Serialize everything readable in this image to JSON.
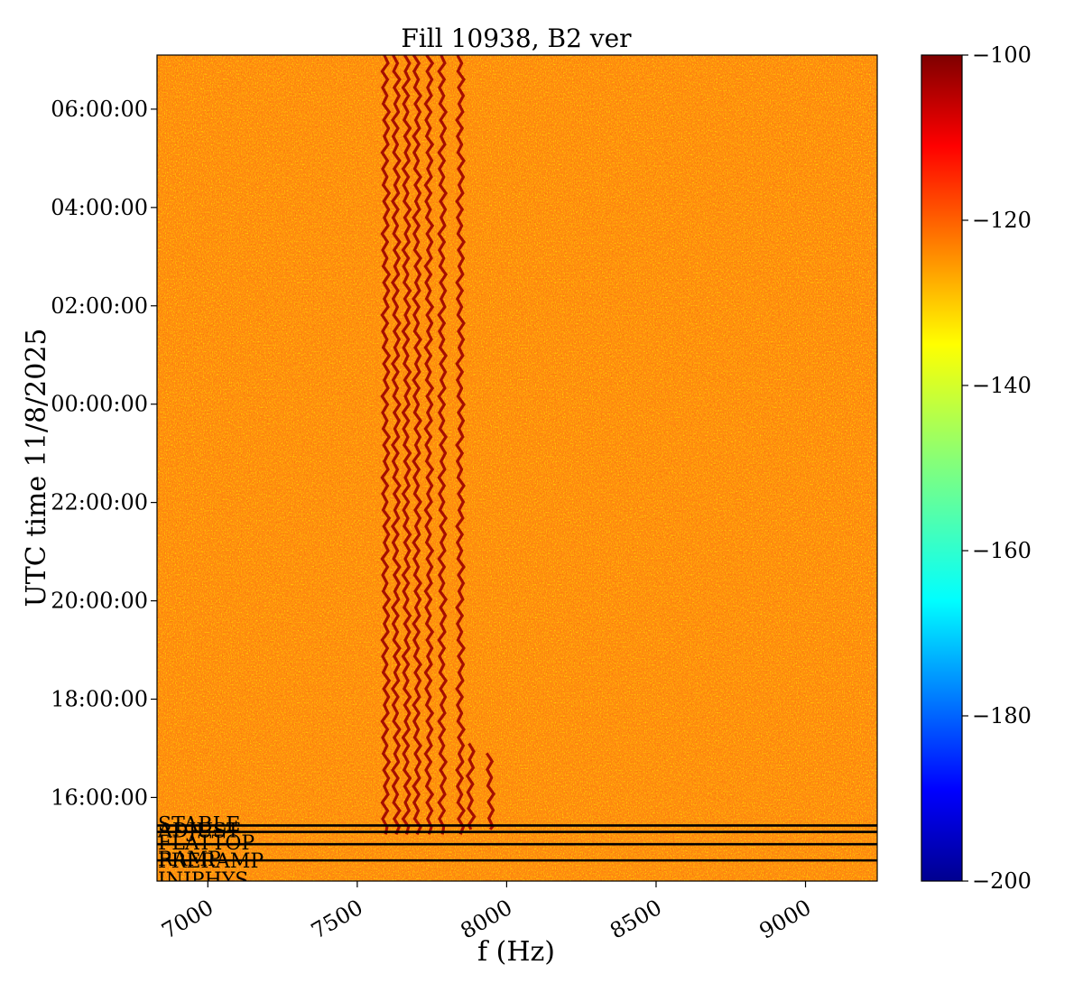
{
  "chart_data": {
    "type": "heatmap",
    "title": "Fill 10938, B2 ver",
    "xlabel": "f (Hz)",
    "ylabel": "UTC time 11/8/2025",
    "xlim": [
      6830,
      9240
    ],
    "x_ticks": [
      7000,
      7500,
      8000,
      8500,
      9000
    ],
    "x_tick_labels": [
      "7000",
      "7500",
      "8000",
      "8500",
      "9000"
    ],
    "ylim_hours": [
      14.3,
      31.1
    ],
    "y_ticks_hours": [
      16,
      18,
      20,
      22,
      24,
      26,
      28,
      30
    ],
    "y_tick_labels": [
      "16:00:00",
      "18:00:00",
      "20:00:00",
      "22:00:00",
      "00:00:00",
      "02:00:00",
      "04:00:00",
      "06:00:00"
    ],
    "colorbar": {
      "colormap": "jet",
      "range": [
        -200,
        -100
      ],
      "ticks": [
        -100,
        -120,
        -140,
        -160,
        -180,
        -200
      ],
      "tick_labels": [
        "−100",
        "−120",
        "−140",
        "−160",
        "−180",
        "−200"
      ]
    },
    "background_level": -120,
    "lines": [
      {
        "freq": 7595,
        "start_hour": 15.25,
        "end_hour": 31.1
      },
      {
        "freq": 7630,
        "start_hour": 15.25,
        "end_hour": 31.1
      },
      {
        "freq": 7665,
        "start_hour": 15.25,
        "end_hour": 31.1
      },
      {
        "freq": 7700,
        "start_hour": 15.25,
        "end_hour": 31.1
      },
      {
        "freq": 7740,
        "start_hour": 15.25,
        "end_hour": 31.1
      },
      {
        "freq": 7785,
        "start_hour": 15.25,
        "end_hour": 31.1
      },
      {
        "freq": 7845,
        "start_hour": 15.25,
        "end_hour": 31.1
      },
      {
        "freq": 7880,
        "start_hour": 15.35,
        "end_hour": 17.1
      },
      {
        "freq": 7945,
        "start_hour": 15.35,
        "end_hour": 16.9
      }
    ],
    "mode_annotations": [
      {
        "label": "STABLE",
        "hour": 15.43
      },
      {
        "label": "ADJUST",
        "hour": 15.3
      },
      {
        "label": "FLATTOP",
        "hour": 15.05
      },
      {
        "label": "RAMP",
        "hour": 14.72
      },
      {
        "label": "PRERAMP",
        "hour": 14.69
      },
      {
        "label": "INJPHYS",
        "hour": 14.3
      }
    ],
    "grid": false,
    "legend": "none"
  }
}
